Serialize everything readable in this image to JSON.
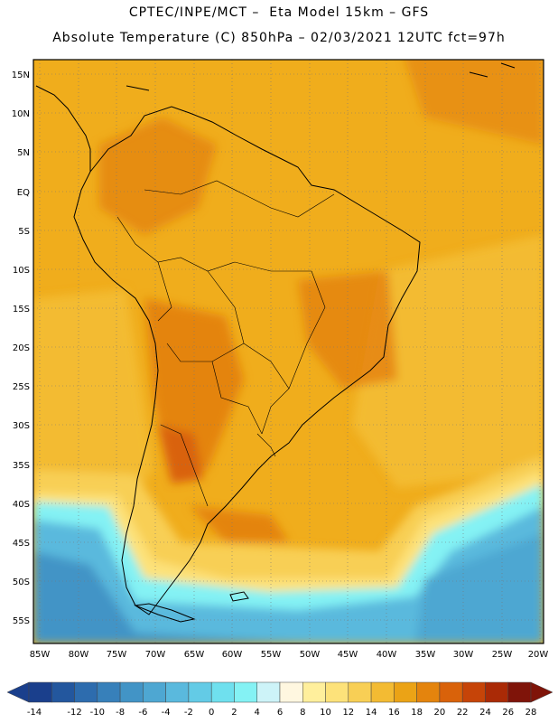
{
  "header": {
    "line1": "CPTEC/INPE/MCT –  Eta Model 15km – GFS",
    "line2": "Absolute Temperature (C) 850hPa – 02/03/2021 12UTC fct=97h"
  },
  "map": {
    "lat_labels": [
      "15N",
      "10N",
      "5N",
      "EQ",
      "5S",
      "10S",
      "15S",
      "20S",
      "25S",
      "30S",
      "35S",
      "40S",
      "45S",
      "50S",
      "55S"
    ],
    "lon_labels": [
      "85W",
      "80W",
      "75W",
      "70W",
      "65W",
      "60W",
      "55W",
      "50W",
      "45W",
      "40W",
      "35W",
      "30W",
      "25W",
      "20W"
    ]
  },
  "colorbar": {
    "labels": [
      "-14",
      "-12",
      "-10",
      "-8",
      "-6",
      "-4",
      "-2",
      "0",
      "2",
      "4",
      "6",
      "8",
      "10",
      "12",
      "14",
      "16",
      "18",
      "20",
      "22",
      "24",
      "26",
      "28"
    ],
    "colors": [
      "#1a3f8c",
      "#23579e",
      "#2d6cae",
      "#3780ba",
      "#4294c6",
      "#4ea7d2",
      "#5ab9dd",
      "#63cbe6",
      "#6fe0ee",
      "#84f2f4",
      "#cdf3f8",
      "#fff7e0",
      "#ffef9c",
      "#fde27a",
      "#f8cf55",
      "#f3bb33",
      "#eba316",
      "#e4840d",
      "#d9620a",
      "#c64408",
      "#aa2a06",
      "#7f1409"
    ]
  }
}
